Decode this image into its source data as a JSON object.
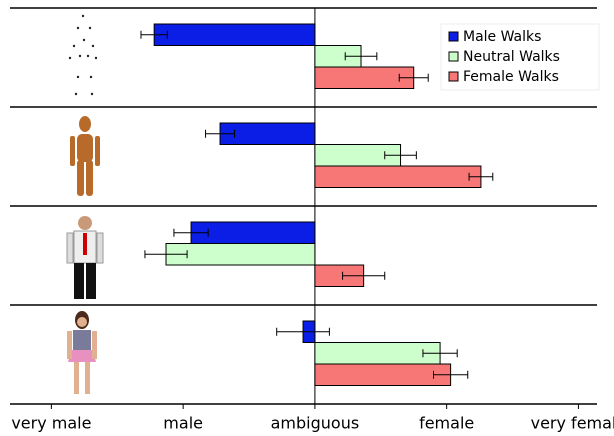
{
  "chart_data": {
    "type": "barh",
    "categories": [
      null,
      null,
      null,
      null
    ],
    "series": [
      {
        "name": "Male Walks",
        "color": "#0a1ee6",
        "values": [
          -1.22,
          -0.72,
          -0.94,
          -0.09
        ],
        "errors": [
          0.1,
          0.11,
          0.13,
          0.2
        ]
      },
      {
        "name": "Neutral Walks",
        "color": "#ccffcc",
        "values": [
          0.35,
          0.65,
          -1.13,
          0.95
        ],
        "errors": [
          0.12,
          0.12,
          0.16,
          0.13
        ]
      },
      {
        "name": "Female Walks",
        "color": "#f77777",
        "values": [
          0.75,
          1.26,
          0.37,
          1.03
        ],
        "errors": [
          0.11,
          0.09,
          0.16,
          0.13
        ]
      }
    ],
    "xlim": [
      -2.39,
      2.27
    ],
    "xticks": [
      {
        "value": -2,
        "label": "very male"
      },
      {
        "value": -1,
        "label": "male"
      },
      {
        "value": 0,
        "label": "ambiguous"
      },
      {
        "value": 1,
        "label": "female"
      },
      {
        "value": 2,
        "label": "very female"
      }
    ],
    "legend": "upper right"
  }
}
